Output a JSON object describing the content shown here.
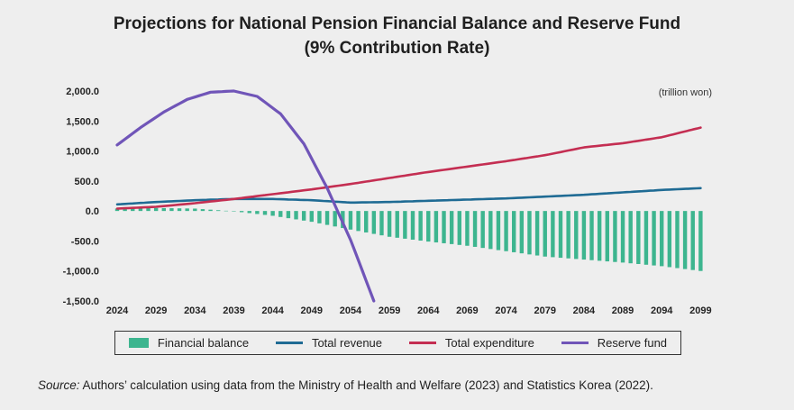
{
  "chart_data": {
    "type": "bar+line",
    "title": "Projections for National Pension Financial Balance and Reserve Fund",
    "subtitle": "(9% Contribution Rate)",
    "unit_label": "(trillion won)",
    "x_tick_labels": [
      "2024",
      "2029",
      "2034",
      "2039",
      "2044",
      "2049",
      "2054",
      "2059",
      "2064",
      "2069",
      "2074",
      "2079",
      "2084",
      "2089",
      "2094",
      "2099"
    ],
    "y_tick_labels": [
      "2,000.0",
      "1,500.0",
      "1,000.0",
      "500.0",
      "0.0",
      "-500.0",
      "-1,000.0",
      "-1,500.0"
    ],
    "ylim": [
      -1500,
      2000
    ],
    "xlim": [
      2024,
      2100
    ],
    "grid": false,
    "legend_position": "bottom",
    "series": [
      {
        "name": "Financial balance",
        "kind": "bar",
        "color": "#3db58f",
        "x": [
          2024,
          2029,
          2034,
          2039,
          2044,
          2049,
          2054,
          2059,
          2064,
          2069,
          2074,
          2079,
          2084,
          2089,
          2094,
          2099
        ],
        "values": [
          40,
          50,
          40,
          -5,
          -80,
          -180,
          -310,
          -430,
          -510,
          -580,
          -670,
          -760,
          -810,
          -860,
          -920,
          -1000
        ]
      },
      {
        "name": "Total revenue",
        "kind": "line",
        "color": "#1f6b94",
        "x": [
          2024,
          2029,
          2034,
          2039,
          2044,
          2049,
          2054,
          2059,
          2064,
          2069,
          2074,
          2079,
          2084,
          2089,
          2094,
          2099
        ],
        "values": [
          110,
          150,
          180,
          200,
          200,
          180,
          140,
          150,
          170,
          190,
          210,
          240,
          270,
          310,
          350,
          380
        ]
      },
      {
        "name": "Total expenditure",
        "kind": "line",
        "color": "#c42e52",
        "x": [
          2024,
          2029,
          2034,
          2039,
          2044,
          2049,
          2054,
          2059,
          2064,
          2069,
          2074,
          2079,
          2084,
          2089,
          2094,
          2099
        ],
        "values": [
          40,
          70,
          130,
          200,
          280,
          360,
          450,
          550,
          650,
          740,
          830,
          930,
          1060,
          1130,
          1230,
          1390
        ]
      },
      {
        "name": "Reserve fund",
        "kind": "line",
        "color": "#7055b8",
        "x": [
          2024,
          2027,
          2030,
          2033,
          2036,
          2039,
          2042,
          2045,
          2048,
          2051,
          2054,
          2057
        ],
        "values": [
          1100,
          1390,
          1650,
          1860,
          1980,
          2000,
          1910,
          1620,
          1120,
          380,
          -480,
          -1500
        ]
      }
    ]
  },
  "legend": {
    "financial_balance": "Financial balance",
    "total_revenue": "Total revenue",
    "total_expenditure": "Total expenditure",
    "reserve_fund": "Reserve fund"
  },
  "source": {
    "label": "Source:",
    "text": " Authors’ calculation using data from the Ministry of Health and Welfare (2023) and Statistics Korea (2022)."
  }
}
